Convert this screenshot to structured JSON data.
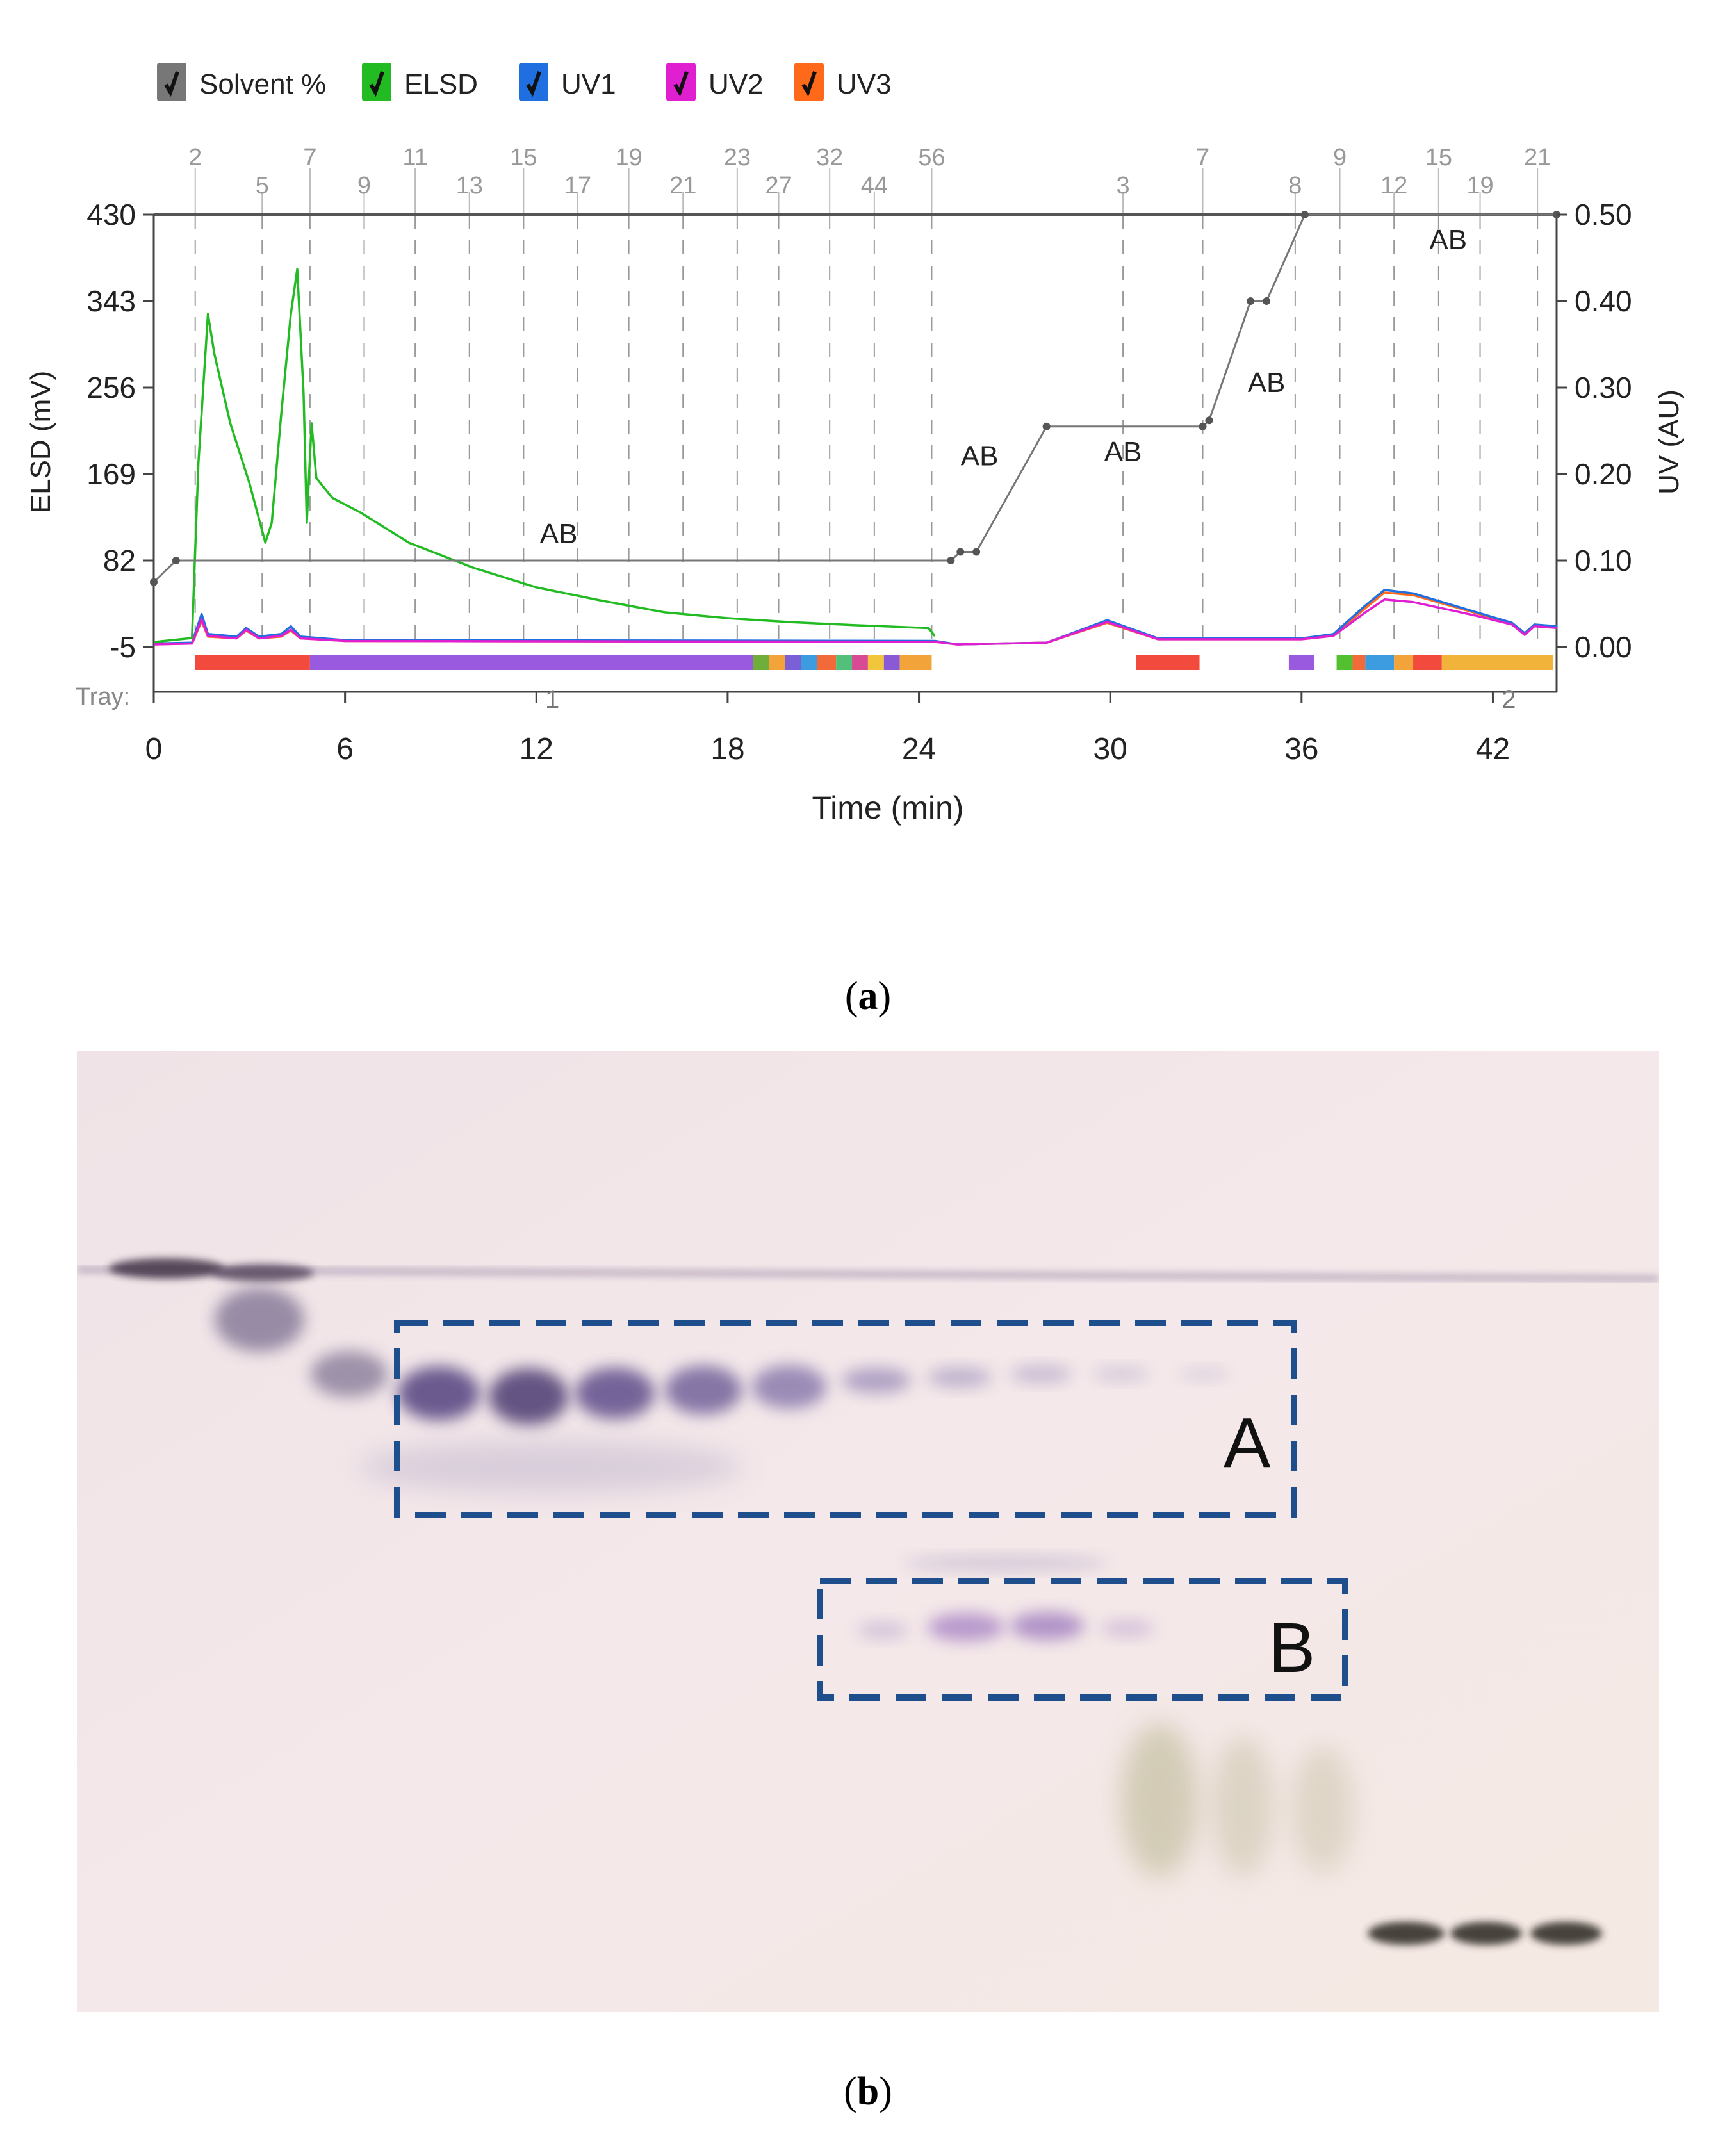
{
  "panel_a": {
    "caption_letter": "a",
    "legend": [
      {
        "label": "Solvent %",
        "color": "#777777"
      },
      {
        "label": "ELSD",
        "color": "#22bb22"
      },
      {
        "label": "UV1",
        "color": "#1f6fe0"
      },
      {
        "label": "UV2",
        "color": "#e020d0"
      },
      {
        "label": "UV3",
        "color": "#ff6a1a"
      }
    ],
    "tray_label": "Tray:",
    "tray_numbers": [
      {
        "label": "1",
        "x": 12.5
      },
      {
        "label": "2",
        "x": 42.5
      }
    ]
  },
  "panel_b": {
    "caption_letter": "b",
    "box_a_label": "A",
    "box_b_label": "B"
  },
  "chart_data": {
    "type": "line",
    "xlabel": "Time (min)",
    "ylabel_left": "ELSD (mV)",
    "ylabel_right": "UV (AU)",
    "xlim": [
      0,
      44
    ],
    "x_ticks": [
      0,
      6,
      12,
      18,
      24,
      30,
      36,
      42
    ],
    "ylim_left": [
      -5,
      430
    ],
    "y_ticks_left": [
      -5,
      82,
      169,
      256,
      343,
      430
    ],
    "ylim_right": [
      0.0,
      0.5
    ],
    "y_ticks_right": [
      "0.00",
      "0.10",
      "0.20",
      "0.30",
      "0.40",
      "0.50"
    ],
    "grid": "vertical dashed at fraction collection points",
    "fraction_markers_top": [
      {
        "t": 1.3,
        "label": "2",
        "row": 1
      },
      {
        "t": 3.4,
        "label": "5",
        "row": 2
      },
      {
        "t": 4.9,
        "label": "7",
        "row": 1
      },
      {
        "t": 6.6,
        "label": "9",
        "row": 2
      },
      {
        "t": 8.2,
        "label": "11",
        "row": 1
      },
      {
        "t": 9.9,
        "label": "13",
        "row": 2
      },
      {
        "t": 11.6,
        "label": "15",
        "row": 1
      },
      {
        "t": 13.3,
        "label": "17",
        "row": 2
      },
      {
        "t": 14.9,
        "label": "19",
        "row": 1
      },
      {
        "t": 16.6,
        "label": "21",
        "row": 2
      },
      {
        "t": 18.3,
        "label": "23",
        "row": 1
      },
      {
        "t": 19.6,
        "label": "27",
        "row": 2
      },
      {
        "t": 21.2,
        "label": "32",
        "row": 1
      },
      {
        "t": 22.6,
        "label": "44",
        "row": 2
      },
      {
        "t": 24.4,
        "label": "56",
        "row": 1
      },
      {
        "t": 30.4,
        "label": "3",
        "row": 2
      },
      {
        "t": 32.9,
        "label": "7",
        "row": 1
      },
      {
        "t": 35.8,
        "label": "8",
        "row": 2
      },
      {
        "t": 37.2,
        "label": "9",
        "row": 1
      },
      {
        "t": 38.9,
        "label": "12",
        "row": 2
      },
      {
        "t": 40.3,
        "label": "15",
        "row": 1
      },
      {
        "t": 41.6,
        "label": "19",
        "row": 2
      },
      {
        "t": 43.4,
        "label": "21",
        "row": 1
      }
    ],
    "solvent_annotations": [
      {
        "label": "AB",
        "t": 12.7,
        "y": 0.12
      },
      {
        "label": "AB",
        "t": 25.9,
        "y": 0.21
      },
      {
        "label": "AB",
        "t": 30.4,
        "y": 0.215
      },
      {
        "label": "AB",
        "t": 34.9,
        "y": 0.295
      },
      {
        "label": "AB",
        "t": 40.6,
        "y": 0.46
      }
    ],
    "series": [
      {
        "name": "Solvent %",
        "color": "#777777",
        "axis": "right",
        "points": [
          [
            0,
            0.075
          ],
          [
            0.7,
            0.1
          ],
          [
            25.0,
            0.1
          ],
          [
            25.3,
            0.11
          ],
          [
            25.8,
            0.11
          ],
          [
            28.0,
            0.255
          ],
          [
            32.9,
            0.255
          ],
          [
            33.1,
            0.262
          ],
          [
            34.4,
            0.4
          ],
          [
            34.9,
            0.4
          ],
          [
            36.1,
            0.5
          ],
          [
            44,
            0.5
          ]
        ]
      },
      {
        "name": "ELSD",
        "color": "#22bb22",
        "axis": "left",
        "points": [
          [
            0,
            0
          ],
          [
            1.2,
            4
          ],
          [
            1.4,
            180
          ],
          [
            1.7,
            330
          ],
          [
            1.9,
            290
          ],
          [
            2.4,
            220
          ],
          [
            3.0,
            160
          ],
          [
            3.5,
            100
          ],
          [
            3.7,
            120
          ],
          [
            4.0,
            230
          ],
          [
            4.3,
            330
          ],
          [
            4.5,
            375
          ],
          [
            4.7,
            250
          ],
          [
            4.8,
            120
          ],
          [
            4.95,
            220
          ],
          [
            5.1,
            165
          ],
          [
            5.6,
            145
          ],
          [
            6.5,
            130
          ],
          [
            8.0,
            100
          ],
          [
            10,
            75
          ],
          [
            12,
            55
          ],
          [
            14,
            42
          ],
          [
            16,
            30
          ],
          [
            18,
            24
          ],
          [
            20,
            20
          ],
          [
            22,
            17
          ],
          [
            24.3,
            14
          ],
          [
            24.5,
            6
          ]
        ]
      },
      {
        "name": "UV1",
        "color": "#1f6fe0",
        "axis": "right",
        "points": [
          [
            0,
            0.004
          ],
          [
            1.2,
            0.005
          ],
          [
            1.5,
            0.038
          ],
          [
            1.7,
            0.015
          ],
          [
            2.6,
            0.012
          ],
          [
            2.9,
            0.022
          ],
          [
            3.3,
            0.012
          ],
          [
            4.0,
            0.015
          ],
          [
            4.3,
            0.024
          ],
          [
            4.6,
            0.012
          ],
          [
            6.0,
            0.008
          ],
          [
            24.5,
            0.007
          ],
          [
            25.2,
            0.003
          ],
          [
            28,
            0.005
          ],
          [
            29.9,
            0.031
          ],
          [
            31.5,
            0.01
          ],
          [
            36.0,
            0.01
          ],
          [
            37.0,
            0.015
          ],
          [
            38.0,
            0.048
          ],
          [
            38.6,
            0.066
          ],
          [
            39.5,
            0.062
          ],
          [
            41.5,
            0.04
          ],
          [
            42.6,
            0.028
          ],
          [
            43.0,
            0.016
          ],
          [
            43.3,
            0.026
          ],
          [
            44,
            0.024
          ]
        ]
      },
      {
        "name": "UV2",
        "color": "#e020d0",
        "axis": "right",
        "points": [
          [
            0,
            0.003
          ],
          [
            1.2,
            0.004
          ],
          [
            1.5,
            0.032
          ],
          [
            1.7,
            0.013
          ],
          [
            2.6,
            0.01
          ],
          [
            2.9,
            0.02
          ],
          [
            3.3,
            0.01
          ],
          [
            4.0,
            0.013
          ],
          [
            4.3,
            0.02
          ],
          [
            4.6,
            0.01
          ],
          [
            6.0,
            0.007
          ],
          [
            24.5,
            0.006
          ],
          [
            25.2,
            0.003
          ],
          [
            28,
            0.005
          ],
          [
            29.9,
            0.029
          ],
          [
            31.5,
            0.009
          ],
          [
            36.0,
            0.009
          ],
          [
            37.0,
            0.013
          ],
          [
            38.0,
            0.04
          ],
          [
            38.6,
            0.055
          ],
          [
            39.5,
            0.052
          ],
          [
            41.5,
            0.036
          ],
          [
            42.6,
            0.026
          ],
          [
            43.0,
            0.014
          ],
          [
            43.3,
            0.024
          ],
          [
            44,
            0.022
          ]
        ]
      },
      {
        "name": "UV3",
        "color": "#ff6a1a",
        "axis": "right",
        "points": [
          [
            0,
            0.003
          ],
          [
            1.2,
            0.004
          ],
          [
            1.5,
            0.03
          ],
          [
            1.7,
            0.012
          ],
          [
            2.6,
            0.01
          ],
          [
            2.9,
            0.019
          ],
          [
            3.3,
            0.01
          ],
          [
            4.0,
            0.012
          ],
          [
            4.3,
            0.019
          ],
          [
            4.6,
            0.01
          ],
          [
            6.0,
            0.007
          ],
          [
            24.5,
            0.006
          ],
          [
            25.2,
            0.003
          ],
          [
            28,
            0.005
          ],
          [
            29.9,
            0.028
          ],
          [
            31.5,
            0.009
          ],
          [
            36.0,
            0.009
          ],
          [
            37.0,
            0.013
          ],
          [
            38.0,
            0.045
          ],
          [
            38.6,
            0.063
          ],
          [
            39.5,
            0.06
          ],
          [
            41.5,
            0.039
          ],
          [
            42.6,
            0.027
          ],
          [
            43.0,
            0.015
          ],
          [
            43.3,
            0.025
          ],
          [
            44,
            0.023
          ]
        ]
      }
    ],
    "fraction_bars": [
      {
        "start": 1.3,
        "end": 4.9,
        "color": "#f24b3d"
      },
      {
        "start": 4.9,
        "end": 18.8,
        "color": "#9a5ae0"
      },
      {
        "start": 18.8,
        "end": 19.3,
        "color": "#6fae3a"
      },
      {
        "start": 19.3,
        "end": 19.8,
        "color": "#f2a33a"
      },
      {
        "start": 19.8,
        "end": 20.3,
        "color": "#7a5fd6"
      },
      {
        "start": 20.3,
        "end": 20.8,
        "color": "#3d9be0"
      },
      {
        "start": 20.8,
        "end": 21.4,
        "color": "#f26a3a"
      },
      {
        "start": 21.4,
        "end": 21.9,
        "color": "#52c07a"
      },
      {
        "start": 21.9,
        "end": 22.4,
        "color": "#d94a94"
      },
      {
        "start": 22.4,
        "end": 22.9,
        "color": "#f2c63a"
      },
      {
        "start": 22.9,
        "end": 23.4,
        "color": "#8a5ad6"
      },
      {
        "start": 23.4,
        "end": 24.4,
        "color": "#f2a33a"
      },
      {
        "start": 30.8,
        "end": 32.8,
        "color": "#f24b3d"
      },
      {
        "start": 35.6,
        "end": 36.4,
        "color": "#9a5ae0"
      },
      {
        "start": 37.1,
        "end": 37.6,
        "color": "#52c02f"
      },
      {
        "start": 37.6,
        "end": 38.0,
        "color": "#f26a3a"
      },
      {
        "start": 38.0,
        "end": 38.9,
        "color": "#3d9be0"
      },
      {
        "start": 38.9,
        "end": 39.5,
        "color": "#f2a33a"
      },
      {
        "start": 39.5,
        "end": 40.4,
        "color": "#f24b3d"
      },
      {
        "start": 40.4,
        "end": 43.9,
        "color": "#f2b33a"
      }
    ]
  }
}
